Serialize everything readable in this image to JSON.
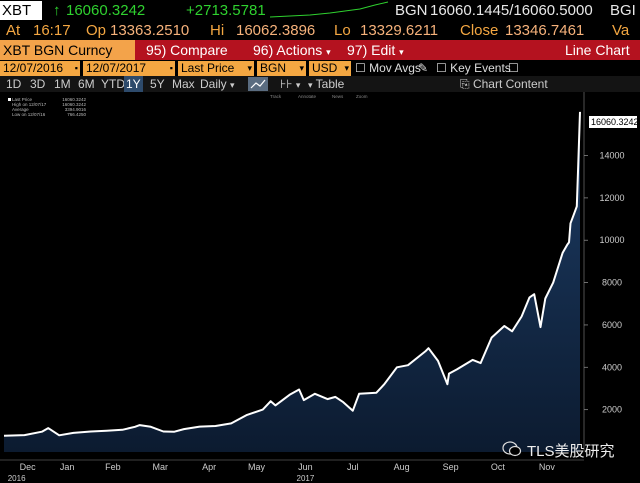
{
  "quote": {
    "ticker": "XBT",
    "last": "16060.3242",
    "last_arrow": "↑",
    "change": "+2713.5781",
    "source_prefix": "BGN",
    "bid_ask": "16060.1445/16060.5000",
    "source_suffix": "BGI",
    "at_label": "At",
    "at_time": "16:17",
    "op_label": "Op",
    "op": "13363.2510",
    "hi_label": "Hi",
    "hi": "16062.3896",
    "lo_label": "Lo",
    "lo": "13329.6211",
    "close_label": "Close",
    "close": "13346.7461",
    "va_label": "Va"
  },
  "menu": {
    "title": "XBT BGN Curncy",
    "compare": "95) Compare",
    "actions": "96) Actions",
    "edit": "97) Edit",
    "chart_type": "Line Chart"
  },
  "controls": {
    "start_date": "12/07/2016",
    "end_date": "12/07/2017",
    "price_field": "Last Price",
    "source": "BGN",
    "currency": "USD",
    "mov_avgs": "Mov Avgs",
    "key_events": "Key Events"
  },
  "ranges": {
    "items": [
      "1D",
      "3D",
      "1M",
      "6M",
      "YTD",
      "1Y",
      "5Y",
      "Max"
    ],
    "active": "1Y",
    "frequency": "Daily",
    "table": "Table",
    "chart_content": "Chart Content"
  },
  "legend": {
    "rows": [
      {
        "name": "Last Price",
        "value": "16060.3242"
      },
      {
        "name": "High on 12/07/17",
        "value": "16060.3242"
      },
      {
        "name": "Average",
        "value": "3394.9016"
      },
      {
        "name": "Low on 12/07/16",
        "value": "766.4250"
      }
    ],
    "mini_toolbar": [
      "Track",
      "Annotate",
      "News",
      "Zoom"
    ]
  },
  "last_value_tag": "16060.3242",
  "watermark": "TLS美股研究",
  "chart_data": {
    "type": "area",
    "x_labels": [
      "Dec",
      "Jan",
      "Feb",
      "Mar",
      "Apr",
      "May",
      "Jun",
      "Jul",
      "Aug",
      "Sep",
      "Oct",
      "Nov"
    ],
    "year_labels": [
      "2016",
      "2017"
    ],
    "y_ticks": [
      2000,
      4000,
      6000,
      8000,
      10000,
      12000,
      14000
    ],
    "ylim": [
      0,
      17000
    ],
    "x_range": [
      "2016-12-07",
      "2017-12-07"
    ],
    "series": [
      {
        "points": [
          [
            "2016-12-07",
            766
          ],
          [
            "2016-12-20",
            800
          ],
          [
            "2016-12-31",
            960
          ],
          [
            "2017-01-04",
            1130
          ],
          [
            "2017-01-11",
            790
          ],
          [
            "2017-01-20",
            900
          ],
          [
            "2017-01-31",
            970
          ],
          [
            "2017-02-10",
            1000
          ],
          [
            "2017-02-20",
            1050
          ],
          [
            "2017-02-28",
            1190
          ],
          [
            "2017-03-03",
            1270
          ],
          [
            "2017-03-10",
            1190
          ],
          [
            "2017-03-18",
            970
          ],
          [
            "2017-03-25",
            960
          ],
          [
            "2017-03-31",
            1080
          ],
          [
            "2017-04-10",
            1200
          ],
          [
            "2017-04-20",
            1230
          ],
          [
            "2017-04-30",
            1350
          ],
          [
            "2017-05-10",
            1750
          ],
          [
            "2017-05-20",
            2000
          ],
          [
            "2017-05-25",
            2400
          ],
          [
            "2017-05-28",
            2200
          ],
          [
            "2017-06-06",
            2700
          ],
          [
            "2017-06-12",
            2950
          ],
          [
            "2017-06-15",
            2450
          ],
          [
            "2017-06-22",
            2750
          ],
          [
            "2017-06-30",
            2500
          ],
          [
            "2017-07-05",
            2600
          ],
          [
            "2017-07-10",
            2350
          ],
          [
            "2017-07-16",
            1950
          ],
          [
            "2017-07-20",
            2750
          ],
          [
            "2017-07-31",
            2800
          ],
          [
            "2017-08-05",
            3200
          ],
          [
            "2017-08-13",
            4000
          ],
          [
            "2017-08-20",
            4100
          ],
          [
            "2017-08-31",
            4750
          ],
          [
            "2017-09-02",
            4900
          ],
          [
            "2017-09-08",
            4300
          ],
          [
            "2017-09-14",
            3200
          ],
          [
            "2017-09-15",
            3700
          ],
          [
            "2017-09-20",
            3900
          ],
          [
            "2017-09-30",
            4350
          ],
          [
            "2017-10-05",
            4200
          ],
          [
            "2017-10-12",
            5400
          ],
          [
            "2017-10-20",
            5950
          ],
          [
            "2017-10-25",
            5700
          ],
          [
            "2017-10-31",
            6400
          ],
          [
            "2017-11-05",
            7300
          ],
          [
            "2017-11-08",
            7450
          ],
          [
            "2017-11-12",
            5900
          ],
          [
            "2017-11-15",
            7250
          ],
          [
            "2017-11-20",
            8000
          ],
          [
            "2017-11-26",
            9400
          ],
          [
            "2017-11-29",
            9800
          ],
          [
            "2017-11-30",
            9900
          ],
          [
            "2017-12-01",
            10800
          ],
          [
            "2017-12-03",
            11200
          ],
          [
            "2017-12-05",
            11600
          ],
          [
            "2017-12-06",
            13800
          ],
          [
            "2017-12-07",
            16060
          ]
        ]
      }
    ],
    "colors": {
      "line": "#ffffff",
      "fill_top": "#1d3d66",
      "fill_bottom": "#0c1b30",
      "background": "#000000"
    }
  }
}
